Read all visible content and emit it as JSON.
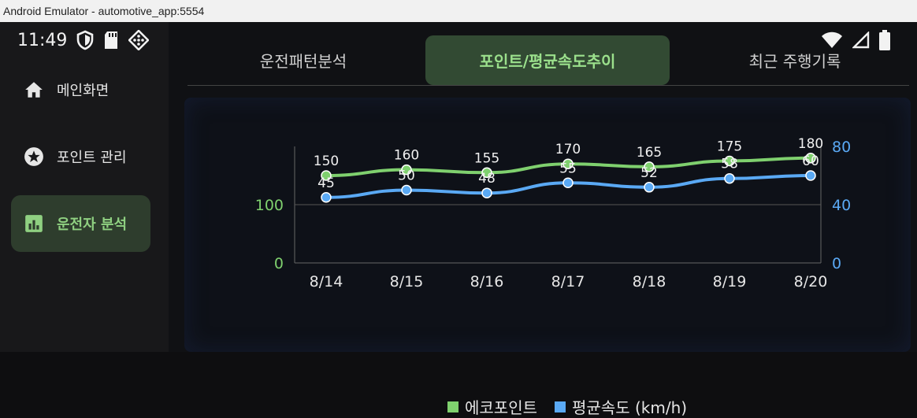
{
  "window": {
    "title": "Android Emulator - automotive_app:5554"
  },
  "status": {
    "time": "11:49"
  },
  "sidebar": {
    "items": [
      {
        "label": "메인화면",
        "icon": "home-icon"
      },
      {
        "label": "포인트 관리",
        "icon": "star-icon"
      },
      {
        "label": "운전자 분석",
        "icon": "bar-chart-icon",
        "active": true
      }
    ]
  },
  "tabs": [
    {
      "label": "운전패턴분석"
    },
    {
      "label": "포인트/평균속도추이",
      "active": true
    },
    {
      "label": "최근 주행기록"
    }
  ],
  "colors": {
    "eco": "#7fd06e",
    "speed": "#5aa9f4",
    "active_bg": "#2e3d2d"
  },
  "chart_data": {
    "type": "line",
    "categories": [
      "8/14",
      "8/15",
      "8/16",
      "8/17",
      "8/18",
      "8/19",
      "8/20"
    ],
    "series": [
      {
        "name": "에코포인트",
        "values": [
          150,
          160,
          155,
          170,
          165,
          175,
          180
        ],
        "axis": "left",
        "color": "#7fd06e"
      },
      {
        "name": "평균속도 (km/h)",
        "values": [
          45,
          50,
          48,
          55,
          52,
          58,
          60
        ],
        "axis": "right",
        "color": "#5aa9f4"
      }
    ],
    "left_axis": {
      "ticks": [
        0,
        100
      ],
      "ylim": [
        0,
        200
      ]
    },
    "right_axis": {
      "ticks": [
        0,
        40,
        80
      ],
      "ylim": [
        0,
        80
      ]
    },
    "legend": "bottom"
  }
}
